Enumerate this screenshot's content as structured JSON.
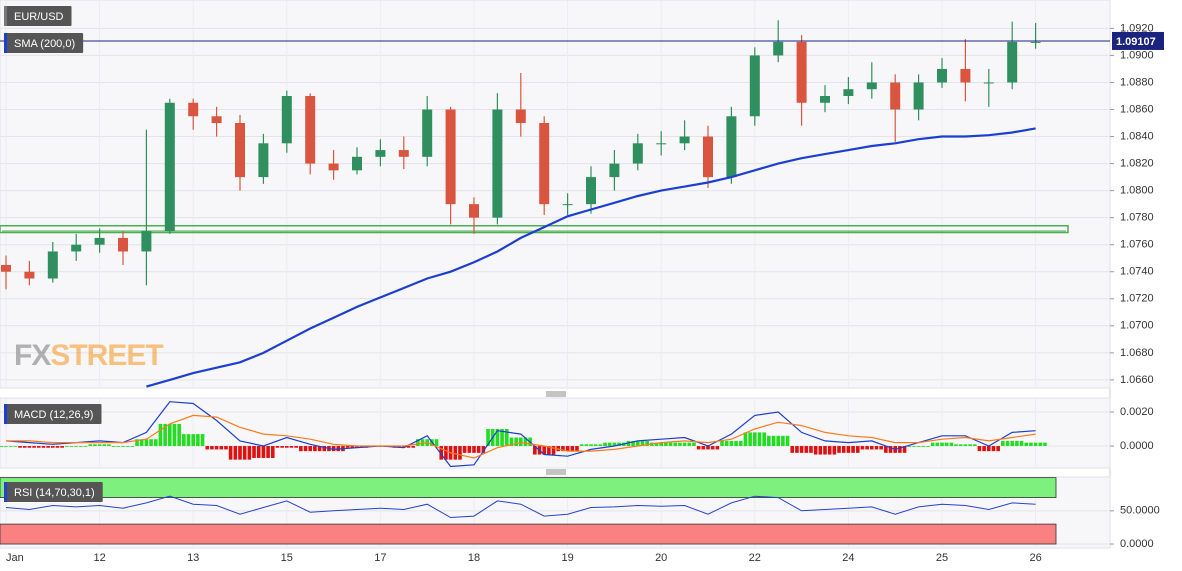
{
  "chart_data": [
    {
      "type": "candlestick",
      "title": "EUR/USD",
      "categories": [
        "Jan",
        null,
        null,
        null,
        "12",
        null,
        null,
        null,
        "13",
        null,
        null,
        null,
        "15",
        null,
        null,
        null,
        "17",
        null,
        null,
        null,
        "18",
        null,
        null,
        null,
        "19",
        null,
        null,
        null,
        "20",
        null,
        null,
        null,
        "22",
        null,
        null,
        null,
        "24",
        null,
        null,
        null,
        "25",
        null,
        null,
        null,
        "26"
      ],
      "open": [
        1.0745,
        1.074,
        1.0735,
        1.0755,
        1.076,
        1.0765,
        1.0755,
        1.077,
        1.0865,
        1.0855,
        1.085,
        1.081,
        1.0835,
        1.087,
        1.082,
        1.0815,
        1.0825,
        1.083,
        1.0825,
        1.086,
        1.079,
        1.078,
        1.086,
        1.085,
        1.079,
        1.079,
        1.081,
        1.082,
        1.0835,
        1.0835,
        1.084,
        1.081,
        1.0855,
        1.09,
        1.091,
        1.0865,
        1.087,
        1.0875,
        1.088,
        1.086,
        1.088,
        1.089,
        1.088,
        1.088,
        1.091
      ],
      "high": [
        1.0752,
        1.0748,
        1.0762,
        1.0768,
        1.0772,
        1.077,
        1.0845,
        1.0868,
        1.0868,
        1.0862,
        1.0856,
        1.0842,
        1.0874,
        1.0872,
        1.083,
        1.0832,
        1.0838,
        1.084,
        1.087,
        1.0862,
        1.0795,
        1.0872,
        1.0887,
        1.0855,
        1.0798,
        1.0818,
        1.083,
        1.0842,
        1.0844,
        1.0852,
        1.0848,
        1.0862,
        1.0906,
        1.0926,
        1.0915,
        1.0878,
        1.0884,
        1.0895,
        1.0886,
        1.0886,
        1.0898,
        1.0912,
        1.089,
        1.0925,
        1.0924
      ],
      "low": [
        1.0727,
        1.073,
        1.0732,
        1.0748,
        1.0754,
        1.0745,
        1.073,
        1.0768,
        1.0845,
        1.084,
        1.08,
        1.0805,
        1.0828,
        1.0812,
        1.0808,
        1.0812,
        1.0818,
        1.0816,
        1.0818,
        1.0775,
        1.0768,
        1.0775,
        1.084,
        1.0782,
        1.0782,
        1.0783,
        1.08,
        1.0815,
        1.0826,
        1.083,
        1.0802,
        1.0805,
        1.0848,
        1.0895,
        1.0848,
        1.0858,
        1.0864,
        1.0868,
        1.0836,
        1.0852,
        1.0876,
        1.0866,
        1.0862,
        1.0875,
        1.0905
      ],
      "close": [
        1.074,
        1.0735,
        1.0755,
        1.076,
        1.0765,
        1.0755,
        1.077,
        1.0865,
        1.0855,
        1.085,
        1.081,
        1.0835,
        1.087,
        1.082,
        1.0815,
        1.0825,
        1.083,
        1.0825,
        1.086,
        1.079,
        1.078,
        1.086,
        1.085,
        1.079,
        1.079,
        1.081,
        1.082,
        1.0835,
        1.0835,
        1.084,
        1.081,
        1.0855,
        1.09,
        1.091,
        1.0865,
        1.087,
        1.0875,
        1.088,
        1.086,
        1.088,
        1.089,
        1.088,
        1.088,
        1.091,
        1.091
      ],
      "up_color": "#2f8f5e",
      "down_color": "#d9553f",
      "series": [
        {
          "name": "SMA (200,0)",
          "color": "#1c3fd1",
          "values": [
            null,
            null,
            null,
            null,
            null,
            null,
            1.0655,
            1.066,
            1.0665,
            1.0669,
            1.0673,
            1.068,
            1.0689,
            1.0698,
            1.0706,
            1.0714,
            1.0721,
            1.0728,
            1.0735,
            1.074,
            1.0747,
            1.0755,
            1.0765,
            1.0773,
            1.0781,
            1.0786,
            1.0791,
            1.0796,
            1.08,
            1.0803,
            1.0806,
            1.081,
            1.0815,
            1.082,
            1.0824,
            1.0827,
            1.083,
            1.0833,
            1.0835,
            1.0838,
            1.084,
            1.084,
            1.0841,
            1.0843,
            1.0846
          ]
        }
      ],
      "support_zone": [
        1.0769,
        1.0774
      ],
      "zone_color": "#4caf50",
      "last_price": 1.09107,
      "last_price_color": "#1a237e",
      "watermark": {
        "prefix": "FX",
        "suffix": "STREET"
      },
      "ylim": [
        1.0654,
        1.0941
      ],
      "yticks": [
        {
          "value": 1.092,
          "label": "1.0920"
        },
        {
          "value": 1.09,
          "label": "1.0900"
        },
        {
          "value": 1.088,
          "label": "1.0880"
        },
        {
          "value": 1.086,
          "label": "1.0860"
        },
        {
          "value": 1.084,
          "label": "1.0840"
        },
        {
          "value": 1.082,
          "label": "1.0820"
        },
        {
          "value": 1.08,
          "label": "1.0800"
        },
        {
          "value": 1.078,
          "label": "1.0780"
        },
        {
          "value": 1.076,
          "label": "1.0760"
        },
        {
          "value": 1.074,
          "label": "1.0740"
        },
        {
          "value": 1.072,
          "label": "1.0720"
        },
        {
          "value": 1.07,
          "label": "1.0700"
        },
        {
          "value": 1.068,
          "label": "1.0680"
        },
        {
          "value": 1.066,
          "label": "1.0660"
        }
      ],
      "grid": true
    },
    {
      "type": "macd",
      "title": "MACD (12,26,9)",
      "series": [
        {
          "color": "#1c3fd1",
          "values": [
            0.0003,
            0.0002,
            0.0001,
            0.0002,
            0.0003,
            0.0002,
            0.0008,
            0.0026,
            0.0025,
            0.0015,
            0.0003,
            0,
            0.0005,
            0.0001,
            -0.0002,
            -0.0001,
            0,
            -0.0001,
            0.0006,
            -0.0012,
            -0.0011,
            0.0009,
            0.0007,
            -0.0005,
            -0.0006,
            -0.0002,
            0,
            0.0003,
            0.0004,
            0.0005,
            0,
            0.0007,
            0.0018,
            0.002,
            0.0008,
            0.0003,
            0.0002,
            0.0003,
            -0.0002,
            0.0002,
            0.0006,
            0.0006,
            0,
            0.0008,
            0.0009
          ]
        },
        {
          "color": "#ff7a1a",
          "values": [
            0.0003,
            0.0003,
            0.0002,
            0.0002,
            0.0002,
            0.0002,
            0.0004,
            0.0013,
            0.0018,
            0.0017,
            0.0011,
            0.0007,
            0.0006,
            0.0004,
            0.0001,
            0,
            0,
            0,
            0.0002,
            -0.0004,
            -0.0007,
            -0.0001,
            0.0002,
            0,
            -0.0003,
            -0.0003,
            -0.0002,
            0,
            0.0002,
            0.0003,
            0.0002,
            0.0004,
            0.001,
            0.0014,
            0.0012,
            0.0008,
            0.0006,
            0.0005,
            0.0002,
            0.0002,
            0.0004,
            0.0005,
            0.0003,
            0.0005,
            0.0007
          ]
        }
      ],
      "histogram": {
        "up_color": "#22dd22",
        "down_color": "#dd1111",
        "values": [
          0,
          -0.0001,
          -0.0001,
          0,
          0.0001,
          0,
          0.0004,
          0.0013,
          0.0007,
          -0.0002,
          -0.0008,
          -0.0007,
          -0.0001,
          -0.0003,
          -0.0003,
          -0.0001,
          0,
          -0.0001,
          0.0004,
          -0.0008,
          -0.0004,
          0.001,
          0.0005,
          -0.0005,
          -0.0003,
          0.0001,
          0.0002,
          0.0003,
          0.0002,
          0.0002,
          -0.0002,
          0.0003,
          0.0008,
          0.0006,
          -0.0004,
          -0.0005,
          -0.0004,
          -0.0002,
          -0.0004,
          0,
          0.0002,
          0.0001,
          -0.0003,
          0.0003,
          0.0002
        ]
      },
      "ylim": [
        -0.00129,
        0.00282
      ],
      "yticks": [
        {
          "value": 0.002,
          "label": "0.0020"
        },
        {
          "value": 0,
          "label": "0.0000"
        }
      ],
      "grid": true
    },
    {
      "type": "line",
      "title": "RSI (14,70,30,1)",
      "series": [
        {
          "color": "#2a3fcf",
          "values": [
            55,
            52,
            58,
            56,
            58,
            54,
            62,
            72,
            60,
            58,
            45,
            55,
            65,
            48,
            50,
            52,
            54,
            52,
            60,
            40,
            42,
            65,
            60,
            42,
            45,
            55,
            56,
            58,
            57,
            58,
            45,
            62,
            72,
            70,
            50,
            52,
            54,
            56,
            45,
            56,
            60,
            58,
            52,
            62,
            60
          ]
        }
      ],
      "zones": [
        {
          "range": [
            70,
            100
          ],
          "color": "#7ef07e"
        },
        {
          "range": [
            0,
            30
          ],
          "color": "#f98181"
        }
      ],
      "ylim": [
        -6,
        101
      ],
      "yticks": [
        {
          "value": 50,
          "label": "50.0000"
        },
        {
          "value": 0,
          "label": "0.0000"
        }
      ],
      "grid": true
    }
  ]
}
